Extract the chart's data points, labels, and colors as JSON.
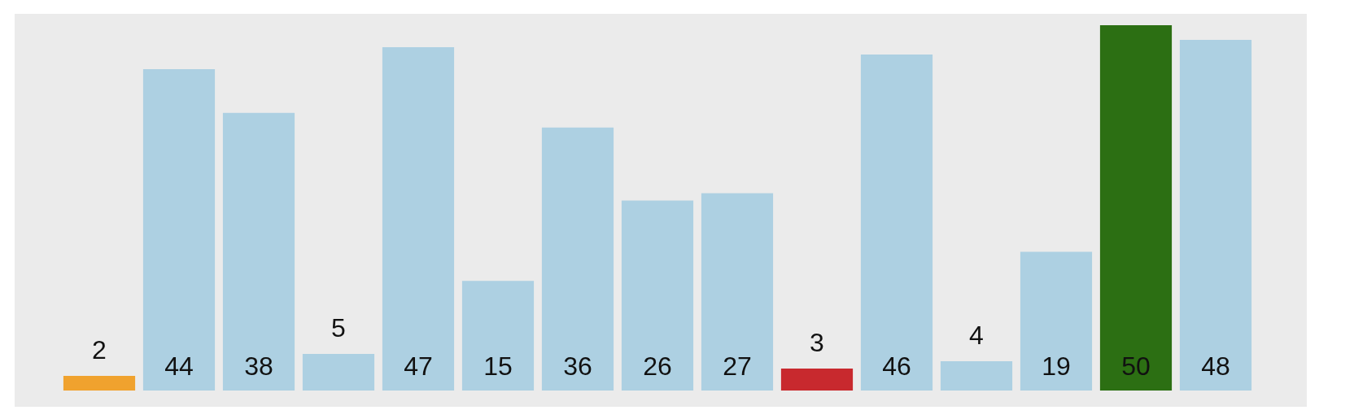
{
  "chart_data": {
    "type": "bar",
    "categories": [
      null,
      null,
      null,
      null,
      null,
      null,
      null,
      null,
      null,
      null,
      null,
      null,
      null,
      null,
      null
    ],
    "values": [
      2,
      44,
      38,
      5,
      47,
      15,
      36,
      26,
      27,
      3,
      46,
      4,
      19,
      50,
      48
    ],
    "colors": [
      "#f0a22e",
      "#add0e2",
      "#add0e2",
      "#add0e2",
      "#add0e2",
      "#add0e2",
      "#add0e2",
      "#add0e2",
      "#add0e2",
      "#c8292e",
      "#add0e2",
      "#add0e2",
      "#add0e2",
      "#2c6f13",
      "#add0e2"
    ],
    "data_labels": true
  }
}
